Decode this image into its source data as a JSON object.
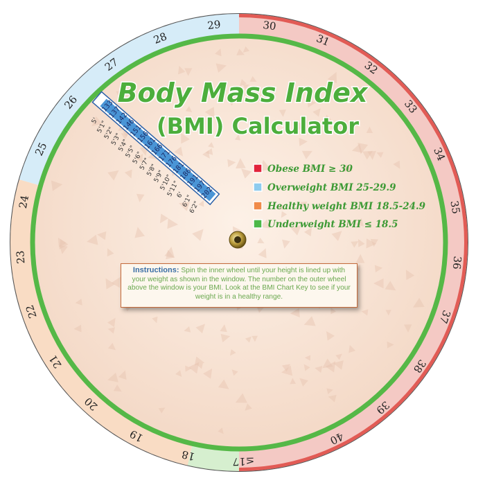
{
  "title": {
    "line1": "Body Mass Index",
    "line2": "(BMI) Calculator"
  },
  "outer_scale": [
    "≤17",
    "18",
    "19",
    "20",
    "21",
    "22",
    "23",
    "24",
    "25",
    "26",
    "27",
    "28",
    "29",
    "30",
    "31",
    "32",
    "33",
    "34",
    "35",
    "36",
    "37",
    "38",
    "39",
    "40"
  ],
  "legend": [
    {
      "label": "Obese BMI ≥ 30",
      "color": "#e2233b"
    },
    {
      "label": "Overweight BMI 25-29.9",
      "color": "#8ecbee"
    },
    {
      "label": "Healthy weight BMI 18.5-24.9",
      "color": "#f08b4a"
    },
    {
      "label": "Underweight BMI ≤ 18.5",
      "color": "#4cb848"
    }
  ],
  "window": {
    "weights": [
      "133",
      "137",
      "142",
      "146",
      "151",
      "156",
      "161",
      "166",
      "171",
      "176",
      "181",
      "186",
      "191",
      "197",
      "202"
    ],
    "heights": [
      "5'",
      "5'1\"",
      "5'2\"",
      "5'3\"",
      "5'4\"",
      "5'5\"",
      "5'6\"",
      "5'7\"",
      "5'8\"",
      "5'9\"",
      "5'10\"",
      "5'11\"",
      "6'",
      "6'1\"",
      "6'2\""
    ]
  },
  "instructions": {
    "label": "Instructions:",
    "text": "Spin the inner wheel until your height is lined up with your weight as shown in the window. The number on the outer wheel  above the window is your BMI. Look at the BMI Chart Key to see if your weight is in a healthy range."
  },
  "colors": {
    "obese": "#f4c9c4",
    "obese_edge": "#e25b55",
    "overweight": "#d6ecf8",
    "healthy": "#f9dcc4",
    "underweight": "#d6efcf",
    "ring": "#55b847",
    "inner_disk": "#f7e4d6"
  }
}
